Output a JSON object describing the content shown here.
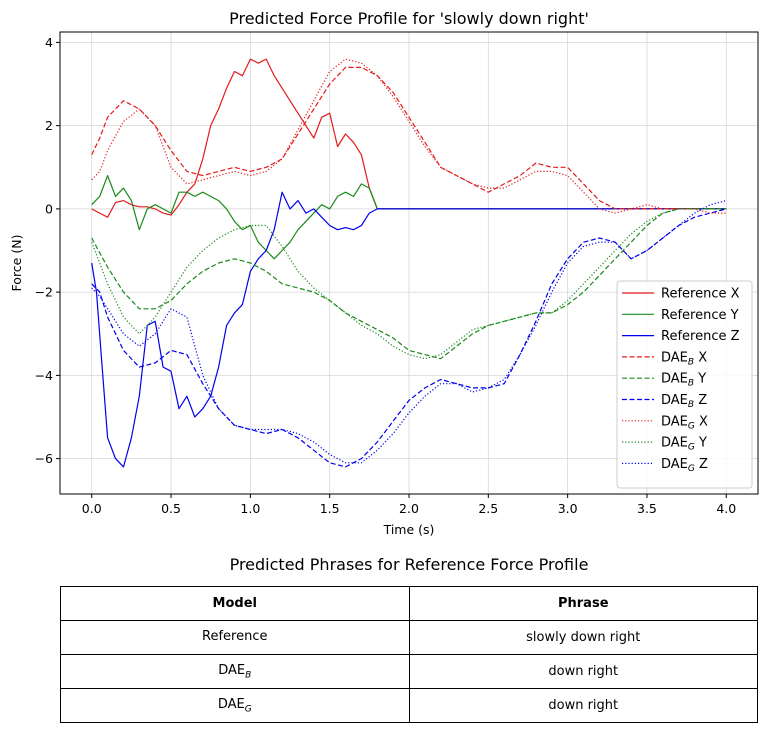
{
  "chart_data": {
    "type": "line",
    "title": "Predicted Force Profile for 'slowly down right'",
    "xlabel": "Time (s)",
    "ylabel": "Force (N)",
    "xlim": [
      -0.2,
      4.2
    ],
    "ylim": [
      -6.85,
      4.25
    ],
    "xticks": [
      0.0,
      0.5,
      1.0,
      1.5,
      2.0,
      2.5,
      3.0,
      3.5,
      4.0
    ],
    "xtick_labels": [
      "0.0",
      "0.5",
      "1.0",
      "1.5",
      "2.0",
      "2.5",
      "3.0",
      "3.5",
      "4.0"
    ],
    "yticks": [
      4,
      2,
      0,
      -2,
      -4,
      -6
    ],
    "ytick_labels": [
      "4",
      "2",
      "0",
      "−2",
      "−4",
      "−6"
    ],
    "grid": true,
    "legend_position": "lower right",
    "series": [
      {
        "name": "Reference X",
        "label_main": "Reference X",
        "label_sub": "",
        "label_suffix": "",
        "color": "#e41a1c",
        "style": "solid",
        "x": [
          0,
          0.05,
          0.1,
          0.15,
          0.2,
          0.25,
          0.3,
          0.35,
          0.4,
          0.45,
          0.5,
          0.55,
          0.6,
          0.65,
          0.7,
          0.75,
          0.8,
          0.85,
          0.9,
          0.95,
          1.0,
          1.05,
          1.1,
          1.15,
          1.2,
          1.25,
          1.3,
          1.35,
          1.4,
          1.45,
          1.5,
          1.55,
          1.6,
          1.65,
          1.7,
          1.75,
          1.8,
          2.0,
          2.5,
          3.0,
          3.5,
          4.0
        ],
        "y": [
          0.0,
          -0.1,
          -0.2,
          0.15,
          0.2,
          0.1,
          0.05,
          0.05,
          0.0,
          -0.1,
          -0.15,
          0.1,
          0.4,
          0.6,
          1.2,
          2.0,
          2.4,
          2.9,
          3.3,
          3.2,
          3.6,
          3.5,
          3.6,
          3.2,
          2.9,
          2.6,
          2.3,
          2.0,
          1.7,
          2.2,
          2.3,
          1.5,
          1.8,
          1.6,
          1.3,
          0.5,
          0.0,
          0.0,
          0.0,
          0.0,
          0.0,
          0.0
        ]
      },
      {
        "name": "Reference Y",
        "label_main": "Reference Y",
        "label_sub": "",
        "label_suffix": "",
        "color": "#1a8a1a",
        "style": "solid",
        "x": [
          0,
          0.05,
          0.1,
          0.15,
          0.2,
          0.25,
          0.3,
          0.35,
          0.4,
          0.45,
          0.5,
          0.55,
          0.6,
          0.65,
          0.7,
          0.75,
          0.8,
          0.85,
          0.9,
          0.95,
          1.0,
          1.05,
          1.1,
          1.15,
          1.2,
          1.25,
          1.3,
          1.35,
          1.4,
          1.45,
          1.5,
          1.55,
          1.6,
          1.65,
          1.7,
          1.75,
          1.8,
          2.0,
          2.5,
          3.0,
          3.5,
          4.0
        ],
        "y": [
          0.1,
          0.3,
          0.8,
          0.3,
          0.5,
          0.2,
          -0.5,
          0.0,
          0.1,
          0.0,
          -0.1,
          0.4,
          0.4,
          0.3,
          0.4,
          0.3,
          0.2,
          0.0,
          -0.3,
          -0.5,
          -0.4,
          -0.8,
          -1.0,
          -1.2,
          -1.0,
          -0.8,
          -0.5,
          -0.3,
          -0.1,
          0.1,
          0.0,
          0.3,
          0.4,
          0.3,
          0.6,
          0.5,
          0.0,
          0.0,
          0.0,
          0.0,
          0.0,
          0.0
        ]
      },
      {
        "name": "Reference Z",
        "label_main": "Reference Z",
        "label_sub": "",
        "label_suffix": "",
        "color": "#0000ee",
        "style": "solid",
        "x": [
          0,
          0.03,
          0.06,
          0.1,
          0.15,
          0.2,
          0.25,
          0.3,
          0.35,
          0.4,
          0.45,
          0.5,
          0.55,
          0.6,
          0.65,
          0.7,
          0.75,
          0.8,
          0.85,
          0.9,
          0.95,
          1.0,
          1.05,
          1.1,
          1.15,
          1.2,
          1.25,
          1.3,
          1.35,
          1.4,
          1.45,
          1.5,
          1.55,
          1.6,
          1.65,
          1.7,
          1.75,
          1.8,
          2.0,
          2.5,
          3.0,
          3.5,
          4.0
        ],
        "y": [
          -1.3,
          -2.0,
          -3.5,
          -5.5,
          -6.0,
          -6.2,
          -5.5,
          -4.5,
          -2.8,
          -2.7,
          -3.8,
          -3.9,
          -4.8,
          -4.5,
          -5.0,
          -4.8,
          -4.5,
          -3.8,
          -2.8,
          -2.5,
          -2.3,
          -1.5,
          -1.2,
          -1.0,
          -0.5,
          0.4,
          0.0,
          0.2,
          -0.1,
          0.0,
          -0.2,
          -0.4,
          -0.5,
          -0.45,
          -0.5,
          -0.4,
          -0.1,
          0.0,
          0.0,
          0.0,
          0.0,
          0.0,
          0.0
        ]
      },
      {
        "name": "DAE_B X",
        "label_main": "DAE",
        "label_sub": "B",
        "label_suffix": " X",
        "color": "#e41a1c",
        "style": "dashed",
        "x": [
          0,
          0.05,
          0.1,
          0.2,
          0.3,
          0.4,
          0.5,
          0.6,
          0.7,
          0.8,
          0.9,
          1.0,
          1.1,
          1.2,
          1.3,
          1.4,
          1.5,
          1.6,
          1.7,
          1.8,
          1.9,
          2.0,
          2.1,
          2.2,
          2.3,
          2.4,
          2.5,
          2.6,
          2.7,
          2.8,
          2.9,
          3.0,
          3.1,
          3.2,
          3.3,
          3.4,
          3.5,
          3.6,
          3.7,
          3.8,
          3.9,
          4.0
        ],
        "y": [
          1.3,
          1.7,
          2.2,
          2.6,
          2.4,
          2.0,
          1.4,
          0.9,
          0.8,
          0.9,
          1.0,
          0.9,
          1.0,
          1.2,
          1.8,
          2.4,
          3.0,
          3.4,
          3.4,
          3.2,
          2.8,
          2.2,
          1.6,
          1.0,
          0.8,
          0.6,
          0.4,
          0.6,
          0.8,
          1.1,
          1.0,
          1.0,
          0.6,
          0.2,
          0.0,
          0.0,
          0.0,
          0.0,
          0.0,
          0.0,
          0.0,
          0.0
        ]
      },
      {
        "name": "DAE_B Y",
        "label_main": "DAE",
        "label_sub": "B",
        "label_suffix": " Y",
        "color": "#1a8a1a",
        "style": "dashed",
        "x": [
          0,
          0.1,
          0.2,
          0.3,
          0.4,
          0.5,
          0.6,
          0.7,
          0.8,
          0.9,
          1.0,
          1.1,
          1.2,
          1.3,
          1.4,
          1.5,
          1.6,
          1.7,
          1.8,
          1.9,
          2.0,
          2.1,
          2.2,
          2.3,
          2.4,
          2.5,
          2.6,
          2.7,
          2.8,
          2.9,
          3.0,
          3.1,
          3.2,
          3.3,
          3.4,
          3.5,
          3.6,
          3.7,
          3.8,
          3.9,
          4.0
        ],
        "y": [
          -0.7,
          -1.4,
          -2.0,
          -2.4,
          -2.4,
          -2.2,
          -1.8,
          -1.5,
          -1.3,
          -1.2,
          -1.3,
          -1.5,
          -1.8,
          -1.9,
          -2.0,
          -2.2,
          -2.5,
          -2.7,
          -2.9,
          -3.1,
          -3.4,
          -3.5,
          -3.6,
          -3.3,
          -3.0,
          -2.8,
          -2.7,
          -2.6,
          -2.5,
          -2.5,
          -2.3,
          -2.0,
          -1.6,
          -1.2,
          -0.8,
          -0.4,
          -0.1,
          0.0,
          0.0,
          0.0,
          0.0
        ]
      },
      {
        "name": "DAE_B Z",
        "label_main": "DAE",
        "label_sub": "B",
        "label_suffix": " Z",
        "color": "#0000ee",
        "style": "dashed",
        "x": [
          0,
          0.05,
          0.1,
          0.2,
          0.3,
          0.4,
          0.5,
          0.6,
          0.7,
          0.8,
          0.9,
          1.0,
          1.1,
          1.2,
          1.3,
          1.4,
          1.5,
          1.6,
          1.7,
          1.8,
          1.9,
          2.0,
          2.1,
          2.2,
          2.3,
          2.4,
          2.5,
          2.6,
          2.7,
          2.8,
          2.9,
          3.0,
          3.1,
          3.2,
          3.3,
          3.4,
          3.5,
          3.6,
          3.7,
          3.8,
          3.9,
          4.0
        ],
        "y": [
          -1.8,
          -2.0,
          -2.6,
          -3.4,
          -3.8,
          -3.7,
          -3.4,
          -3.5,
          -4.2,
          -4.8,
          -5.2,
          -5.3,
          -5.4,
          -5.3,
          -5.5,
          -5.8,
          -6.1,
          -6.2,
          -6.0,
          -5.6,
          -5.1,
          -4.6,
          -4.3,
          -4.1,
          -4.2,
          -4.3,
          -4.3,
          -4.2,
          -3.5,
          -2.7,
          -1.8,
          -1.2,
          -0.8,
          -0.7,
          -0.8,
          -1.2,
          -1.0,
          -0.7,
          -0.4,
          -0.2,
          -0.1,
          0.0
        ]
      },
      {
        "name": "DAE_G X",
        "label_main": "DAE",
        "label_sub": "G",
        "label_suffix": " X",
        "color": "#e41a1c",
        "style": "dotted",
        "x": [
          0,
          0.05,
          0.1,
          0.2,
          0.3,
          0.4,
          0.5,
          0.6,
          0.7,
          0.8,
          0.9,
          1.0,
          1.1,
          1.2,
          1.3,
          1.4,
          1.5,
          1.6,
          1.7,
          1.8,
          1.9,
          2.0,
          2.1,
          2.2,
          2.3,
          2.4,
          2.5,
          2.6,
          2.7,
          2.8,
          2.9,
          3.0,
          3.1,
          3.2,
          3.3,
          3.4,
          3.5,
          3.6,
          3.7,
          3.8,
          3.9,
          4.0
        ],
        "y": [
          0.7,
          0.9,
          1.4,
          2.1,
          2.4,
          2.0,
          1.0,
          0.6,
          0.7,
          0.8,
          0.9,
          0.8,
          0.9,
          1.2,
          1.9,
          2.6,
          3.3,
          3.6,
          3.5,
          3.2,
          2.7,
          2.1,
          1.5,
          1.0,
          0.8,
          0.6,
          0.5,
          0.5,
          0.7,
          0.9,
          0.9,
          0.8,
          0.4,
          0.0,
          -0.1,
          0.0,
          0.1,
          0.0,
          0.0,
          0.0,
          -0.1,
          -0.1
        ]
      },
      {
        "name": "DAE_G Y",
        "label_main": "DAE",
        "label_sub": "G",
        "label_suffix": " Y",
        "color": "#1a8a1a",
        "style": "dotted",
        "x": [
          0,
          0.1,
          0.2,
          0.3,
          0.4,
          0.5,
          0.6,
          0.7,
          0.8,
          0.9,
          1.0,
          1.1,
          1.2,
          1.3,
          1.4,
          1.5,
          1.6,
          1.7,
          1.8,
          1.9,
          2.0,
          2.1,
          2.2,
          2.3,
          2.4,
          2.5,
          2.6,
          2.7,
          2.8,
          2.9,
          3.0,
          3.1,
          3.2,
          3.3,
          3.4,
          3.5,
          3.6,
          3.7,
          3.8,
          3.9,
          4.0
        ],
        "y": [
          -0.8,
          -1.8,
          -2.6,
          -3.0,
          -2.6,
          -2.0,
          -1.4,
          -1.0,
          -0.7,
          -0.5,
          -0.4,
          -0.4,
          -0.9,
          -1.5,
          -1.9,
          -2.2,
          -2.5,
          -2.8,
          -3.0,
          -3.3,
          -3.5,
          -3.6,
          -3.5,
          -3.2,
          -2.9,
          -2.8,
          -2.7,
          -2.6,
          -2.5,
          -2.5,
          -2.2,
          -1.8,
          -1.4,
          -1.0,
          -0.6,
          -0.3,
          -0.1,
          0.0,
          0.0,
          0.0,
          0.0
        ]
      },
      {
        "name": "DAE_G Z",
        "label_main": "DAE",
        "label_sub": "G",
        "label_suffix": " Z",
        "color": "#0000ee",
        "style": "dotted",
        "x": [
          0,
          0.05,
          0.1,
          0.2,
          0.3,
          0.4,
          0.5,
          0.6,
          0.7,
          0.8,
          0.9,
          1.0,
          1.1,
          1.2,
          1.3,
          1.4,
          1.5,
          1.6,
          1.7,
          1.8,
          1.9,
          2.0,
          2.1,
          2.2,
          2.3,
          2.4,
          2.5,
          2.6,
          2.7,
          2.8,
          2.9,
          3.0,
          3.1,
          3.2,
          3.3,
          3.4,
          3.5,
          3.6,
          3.7,
          3.8,
          3.9,
          4.0
        ],
        "y": [
          -1.9,
          -2.1,
          -2.4,
          -3.0,
          -3.3,
          -3.0,
          -2.4,
          -2.6,
          -4.0,
          -4.8,
          -5.2,
          -5.3,
          -5.3,
          -5.3,
          -5.4,
          -5.6,
          -5.9,
          -6.1,
          -6.1,
          -5.8,
          -5.4,
          -4.9,
          -4.5,
          -4.2,
          -4.2,
          -4.4,
          -4.3,
          -4.1,
          -3.5,
          -2.8,
          -2.0,
          -1.3,
          -0.9,
          -0.8,
          -0.8,
          -1.2,
          -1.0,
          -0.7,
          -0.4,
          -0.1,
          0.1,
          0.2
        ]
      }
    ]
  },
  "table": {
    "title": "Predicted Phrases for Reference Force Profile",
    "header_model": "Model",
    "header_phrase": "Phrase",
    "rows": [
      {
        "model": "Reference",
        "model_sub": "",
        "phrase": "slowly down right"
      },
      {
        "model": "DAE",
        "model_sub": "B",
        "phrase": "down right"
      },
      {
        "model": "DAE",
        "model_sub": "G",
        "phrase": "down right"
      }
    ]
  }
}
